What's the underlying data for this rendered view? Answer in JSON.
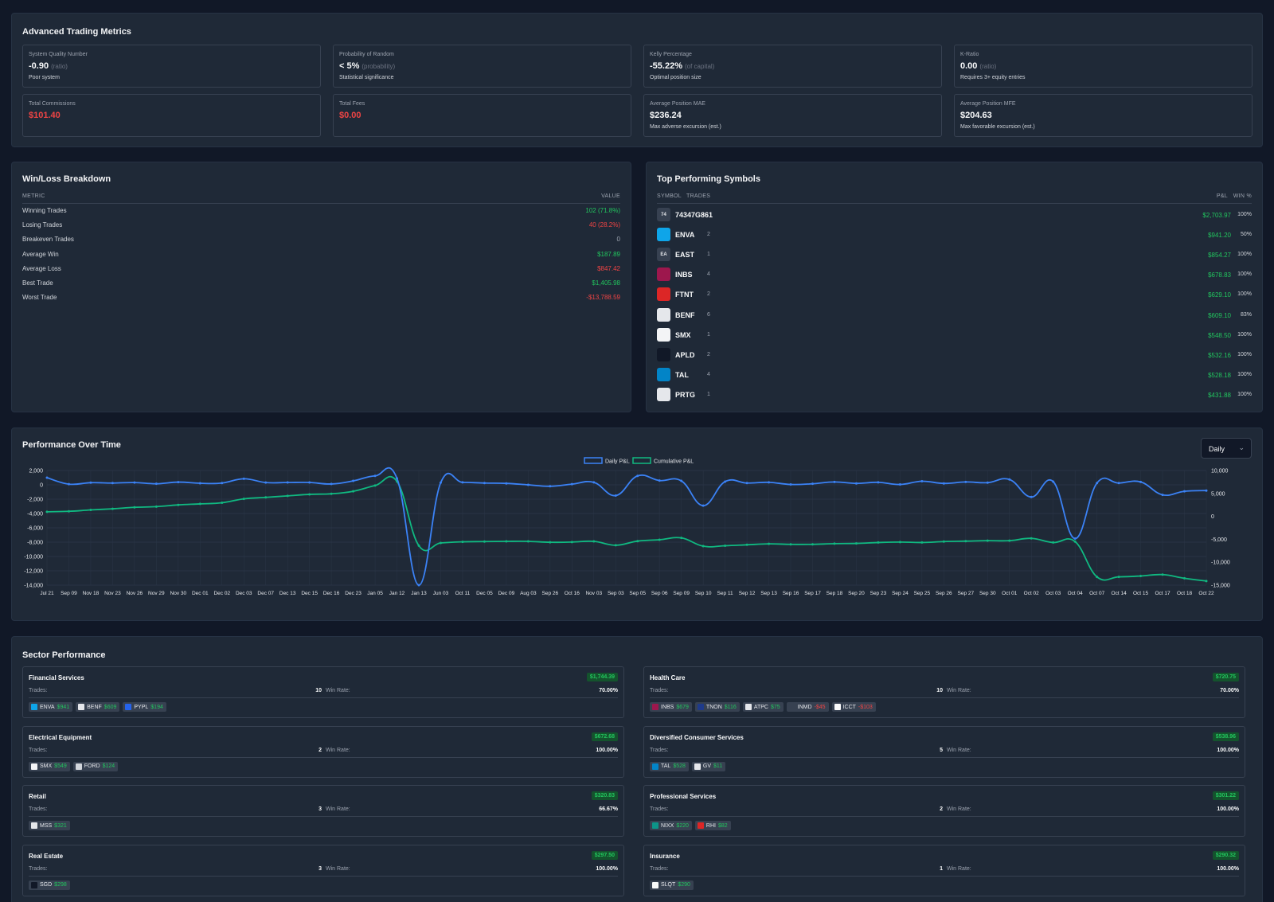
{
  "advanced": {
    "title": "Advanced Trading Metrics",
    "metrics": [
      {
        "label": "System Quality Number",
        "value": "-0.90",
        "unit": "(ratio)",
        "sub": "Poor system",
        "color": "white"
      },
      {
        "label": "Probability of Random",
        "value": "< 5%",
        "unit": "(probability)",
        "sub": "Statistical significance",
        "color": "white"
      },
      {
        "label": "Kelly Percentage",
        "value": "-55.22%",
        "unit": "(of capital)",
        "sub": "Optimal position size",
        "color": "white"
      },
      {
        "label": "K-Ratio",
        "value": "0.00",
        "unit": "(ratio)",
        "sub": "Requires 3+ equity entries",
        "color": "white"
      },
      {
        "label": "Total Commissions",
        "value": "$101.40",
        "unit": "",
        "sub": "",
        "color": "red"
      },
      {
        "label": "Total Fees",
        "value": "$0.00",
        "unit": "",
        "sub": "",
        "color": "red"
      },
      {
        "label": "Average Position MAE",
        "value": "$236.24",
        "unit": "",
        "sub": "Max adverse excursion (est.)",
        "color": "white"
      },
      {
        "label": "Average Position MFE",
        "value": "$204.63",
        "unit": "",
        "sub": "Max favorable excursion (est.)",
        "color": "white"
      }
    ]
  },
  "winloss": {
    "title": "Win/Loss Breakdown",
    "col_metric": "METRIC",
    "col_value": "VALUE",
    "rows": [
      {
        "label": "Winning Trades",
        "value": "102 (71.8%)",
        "color": "green"
      },
      {
        "label": "Losing Trades",
        "value": "40 (28.2%)",
        "color": "red"
      },
      {
        "label": "Breakeven Trades",
        "value": "0",
        "color": "gray"
      },
      {
        "label": "Average Win",
        "value": "$187.89",
        "color": "green"
      },
      {
        "label": "Average Loss",
        "value": "$847.42",
        "color": "red"
      },
      {
        "label": "Best Trade",
        "value": "$1,405.98",
        "color": "green"
      },
      {
        "label": "Worst Trade",
        "value": "-$13,788.59",
        "color": "red"
      }
    ]
  },
  "symbols": {
    "title": "Top Performing Symbols",
    "col_symbol": "SYMBOL",
    "col_trades": "TRADES",
    "col_pnl": "P&L",
    "col_win": "WIN %",
    "rows": [
      {
        "symbol": "74347G861",
        "trades": "",
        "pnl": "$2,703.97",
        "win": "100%",
        "icon_text": "74",
        "icon_color": "#374151"
      },
      {
        "symbol": "ENVA",
        "trades": "2",
        "pnl": "$941.20",
        "win": "50%",
        "icon_text": "",
        "icon_color": "#0ea5e9"
      },
      {
        "symbol": "EAST",
        "trades": "1",
        "pnl": "$854.27",
        "win": "100%",
        "icon_text": "EA",
        "icon_color": "#374151"
      },
      {
        "symbol": "INBS",
        "trades": "4",
        "pnl": "$678.83",
        "win": "100%",
        "icon_text": "",
        "icon_color": "#9d174d"
      },
      {
        "symbol": "FTNT",
        "trades": "2",
        "pnl": "$629.10",
        "win": "100%",
        "icon_text": "",
        "icon_color": "#dc2626"
      },
      {
        "symbol": "BENF",
        "trades": "6",
        "pnl": "$609.10",
        "win": "83%",
        "icon_text": "",
        "icon_color": "#e5e7eb"
      },
      {
        "symbol": "SMX",
        "trades": "1",
        "pnl": "$548.50",
        "win": "100%",
        "icon_text": "",
        "icon_color": "#f3f4f6"
      },
      {
        "symbol": "APLD",
        "trades": "2",
        "pnl": "$532.16",
        "win": "100%",
        "icon_text": "",
        "icon_color": "#111827"
      },
      {
        "symbol": "TAL",
        "trades": "4",
        "pnl": "$528.18",
        "win": "100%",
        "icon_text": "",
        "icon_color": "#0284c7"
      },
      {
        "symbol": "PRTG",
        "trades": "1",
        "pnl": "$431.88",
        "win": "100%",
        "icon_text": "",
        "icon_color": "#e5e7eb"
      }
    ]
  },
  "performance": {
    "title": "Performance Over Time",
    "period": "Daily"
  },
  "chart_data": {
    "type": "line",
    "title": "",
    "x": [
      "Jul 21",
      "Sep 09",
      "Nov 18",
      "Nov 23",
      "Nov 26",
      "Nov 29",
      "Nov 30",
      "Dec 01",
      "Dec 02",
      "Dec 03",
      "Dec 07",
      "Dec 13",
      "Dec 15",
      "Dec 16",
      "Dec 23",
      "Jan 05",
      "Jan 12",
      "Jan 13",
      "Jun 03",
      "Oct 11",
      "Dec 05",
      "Dec 09",
      "Aug 03",
      "Sep 26",
      "Oct 16",
      "Nov 03",
      "Sep 03",
      "Sep 05",
      "Sep 06",
      "Sep 09",
      "Sep 10",
      "Sep 11",
      "Sep 12",
      "Sep 13",
      "Sep 16",
      "Sep 17",
      "Sep 18",
      "Sep 20",
      "Sep 23",
      "Sep 24",
      "Sep 25",
      "Sep 26",
      "Sep 27",
      "Sep 30",
      "Oct 01",
      "Oct 02",
      "Oct 03",
      "Oct 04",
      "Oct 07",
      "Oct 14",
      "Oct 15",
      "Oct 17",
      "Oct 18",
      "Oct 22"
    ],
    "series": [
      {
        "name": "Daily P&L",
        "axis": "left",
        "color": "#3b82f6",
        "values": [
          1000,
          100,
          300,
          250,
          320,
          150,
          380,
          220,
          250,
          850,
          320,
          330,
          330,
          120,
          550,
          1250,
          900,
          -14000,
          300,
          350,
          250,
          200,
          0,
          -200,
          100,
          350,
          -1500,
          1250,
          600,
          550,
          -2900,
          450,
          250,
          350,
          50,
          150,
          400,
          200,
          350,
          50,
          500,
          200,
          400,
          300,
          750,
          -1700,
          450,
          -7500,
          250,
          250,
          400,
          -1400,
          -900,
          -800
        ],
        "point_indexes": "all"
      },
      {
        "name": "Cumulative P&L",
        "axis": "right",
        "color": "#10b981",
        "values": [
          1000,
          1100,
          1400,
          1650,
          1970,
          2120,
          2500,
          2720,
          2970,
          3820,
          4140,
          4470,
          4800,
          4920,
          5470,
          6720,
          7620,
          -6380,
          -5800,
          -5550,
          -5500,
          -5450,
          -5450,
          -5650,
          -5600,
          -5450,
          -6300,
          -5400,
          -5100,
          -4700,
          -6500,
          -6400,
          -6200,
          -6000,
          -6100,
          -6100,
          -5950,
          -5900,
          -5700,
          -5600,
          -5700,
          -5500,
          -5400,
          -5300,
          -5300,
          -4800,
          -5700,
          -5500,
          -13200,
          -13200,
          -13000,
          -12700,
          -13500,
          -14100
        ]
      }
    ],
    "left_ylim": [
      -14000,
      2000
    ],
    "right_ylim": [
      -15000,
      10000
    ],
    "left_ticks": [
      "2,000",
      "0",
      "-2,000",
      "-4,000",
      "-6,000",
      "-8,000",
      "-10,000",
      "-12,000",
      "-14,000"
    ],
    "right_ticks": [
      "10,000",
      "5,000",
      "0",
      "-5,000",
      "-10,000",
      "-15,000"
    ],
    "legend": "top-center",
    "grid": true
  },
  "sectors": {
    "title": "Sector Performance",
    "trades_label": "Trades:",
    "winrate_label": "Win Rate:",
    "items": [
      {
        "name": "Financial Services",
        "pnl": "$1,744.39",
        "trades": "10",
        "winrate": "70.00%",
        "chips": [
          {
            "sym": "ENVA",
            "val": "$941",
            "neg": false,
            "c": "#0ea5e9"
          },
          {
            "sym": "BENF",
            "val": "$609",
            "neg": false,
            "c": "#e5e7eb"
          },
          {
            "sym": "PYPL",
            "val": "$194",
            "neg": false,
            "c": "#2563eb"
          }
        ]
      },
      {
        "name": "Health Care",
        "pnl": "$720.75",
        "trades": "10",
        "winrate": "70.00%",
        "chips": [
          {
            "sym": "INBS",
            "val": "$679",
            "neg": false,
            "c": "#9d174d"
          },
          {
            "sym": "TNON",
            "val": "$116",
            "neg": false,
            "c": "#1e3a8a"
          },
          {
            "sym": "ATPC",
            "val": "$75",
            "neg": false,
            "c": "#e5e7eb"
          },
          {
            "sym": "INMD",
            "val": "-$45",
            "neg": true,
            "c": "#374151"
          },
          {
            "sym": "ICCT",
            "val": "-$103",
            "neg": true,
            "c": "#f9fafb"
          }
        ]
      },
      {
        "name": "Electrical Equipment",
        "pnl": "$672.68",
        "trades": "2",
        "winrate": "100.00%",
        "chips": [
          {
            "sym": "SMX",
            "val": "$549",
            "neg": false,
            "c": "#f3f4f6"
          },
          {
            "sym": "FORD",
            "val": "$124",
            "neg": false,
            "c": "#d1d5db"
          }
        ]
      },
      {
        "name": "Diversified Consumer Services",
        "pnl": "$538.96",
        "trades": "5",
        "winrate": "100.00%",
        "chips": [
          {
            "sym": "TAL",
            "val": "$528",
            "neg": false,
            "c": "#0284c7"
          },
          {
            "sym": "GV",
            "val": "$11",
            "neg": false,
            "c": "#e5e7eb"
          }
        ]
      },
      {
        "name": "Retail",
        "pnl": "$320.83",
        "trades": "3",
        "winrate": "66.67%",
        "chips": [
          {
            "sym": "MSS",
            "val": "$321",
            "neg": false,
            "c": "#e5e7eb"
          }
        ]
      },
      {
        "name": "Professional Services",
        "pnl": "$301.22",
        "trades": "2",
        "winrate": "100.00%",
        "chips": [
          {
            "sym": "NIXX",
            "val": "$220",
            "neg": false,
            "c": "#0d9488"
          },
          {
            "sym": "RHI",
            "val": "$82",
            "neg": false,
            "c": "#dc2626"
          }
        ]
      },
      {
        "name": "Real Estate",
        "pnl": "$297.50",
        "trades": "3",
        "winrate": "100.00%",
        "chips": [
          {
            "sym": "SGD",
            "val": "$298",
            "neg": false,
            "c": "#111827"
          }
        ]
      },
      {
        "name": "Insurance",
        "pnl": "$290.32",
        "trades": "1",
        "winrate": "100.00%",
        "chips": [
          {
            "sym": "SLQT",
            "val": "$290",
            "neg": false,
            "c": "#f9fafb"
          }
        ]
      }
    ]
  }
}
